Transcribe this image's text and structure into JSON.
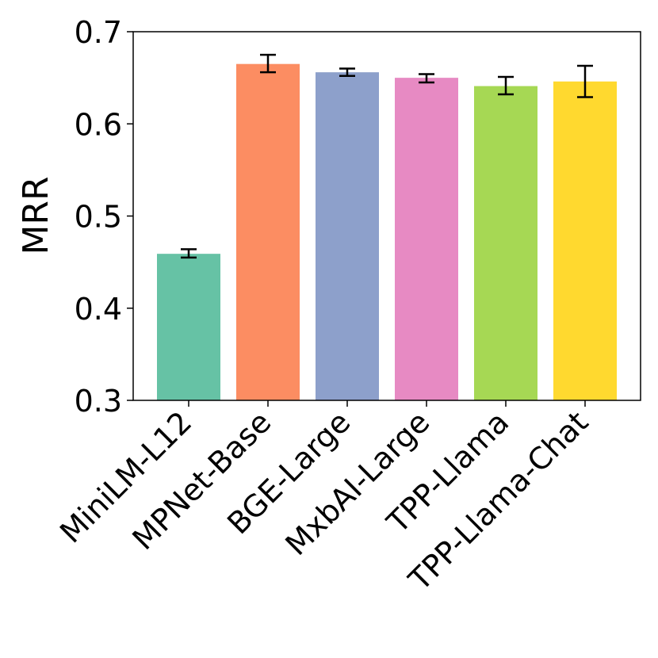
{
  "chart_data": {
    "type": "bar",
    "title": "",
    "xlabel": "",
    "ylabel": "MRR",
    "ylim": [
      0.3,
      0.7
    ],
    "yticks": [
      0.3,
      0.4,
      0.5,
      0.6,
      0.7
    ],
    "ytick_labels": [
      "0.3",
      "0.4",
      "0.5",
      "0.6",
      "0.7"
    ],
    "grid": false,
    "legend": "none",
    "categories": [
      "MiniLM-L12",
      "MPNet-Base",
      "BGE-Large",
      "MxbAI-Large",
      "TPP-Llama",
      "TPP-Llama-Chat"
    ],
    "values": [
      0.459,
      0.665,
      0.656,
      0.65,
      0.641,
      0.646
    ],
    "error_low": [
      0.455,
      0.656,
      0.652,
      0.645,
      0.632,
      0.629
    ],
    "error_high": [
      0.464,
      0.675,
      0.66,
      0.654,
      0.651,
      0.663
    ],
    "colors": [
      "#66c2a5",
      "#fc8d62",
      "#8da0cb",
      "#e78ac3",
      "#a6d854",
      "#ffd92f"
    ],
    "error_bar_color": "#000000"
  }
}
